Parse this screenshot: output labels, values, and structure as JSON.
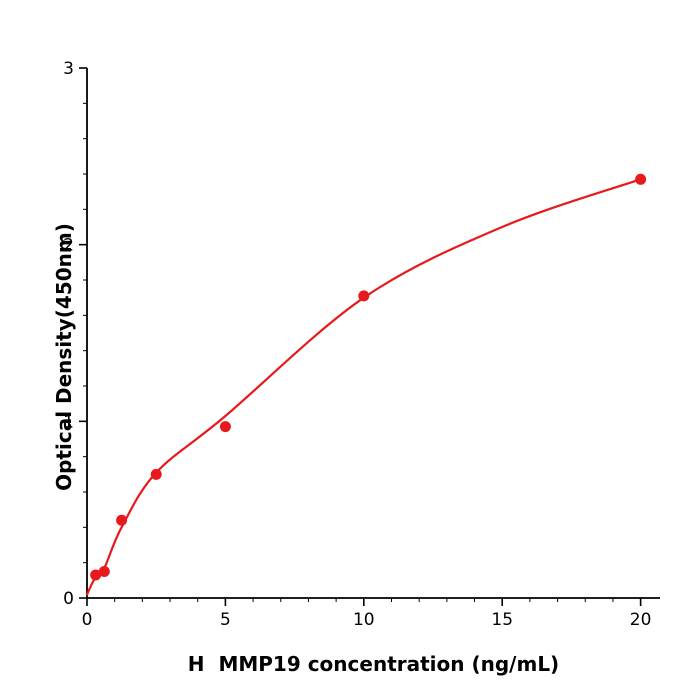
{
  "chart_data": {
    "type": "scatter",
    "title": "",
    "xlabel": "H  MMP19 concentration (ng/mL)",
    "ylabel": "Optical Density(450nm)",
    "x": [
      0.3125,
      0.625,
      1.25,
      2.5,
      5,
      10,
      20
    ],
    "y": [
      0.13,
      0.15,
      0.44,
      0.7,
      0.97,
      1.71,
      2.37
    ],
    "curve": {
      "x": [
        0,
        0.3125,
        0.625,
        1.25,
        2.5,
        5,
        10,
        15,
        20
      ],
      "y": [
        0.02,
        0.12,
        0.17,
        0.4,
        0.71,
        1.03,
        1.7,
        2.1,
        2.37
      ]
    },
    "xlim": [
      0,
      20.7
    ],
    "ylim": [
      0,
      3
    ],
    "x_ticks": [
      0,
      5,
      10,
      15,
      20
    ],
    "y_ticks": [
      0,
      1,
      2,
      3
    ],
    "x_minor_step": 1,
    "y_minor_step": 0.2,
    "grid": false,
    "legend": null,
    "accent_color": "#e8191c",
    "axis_color": "#000000",
    "background_color": "#ffffff"
  }
}
